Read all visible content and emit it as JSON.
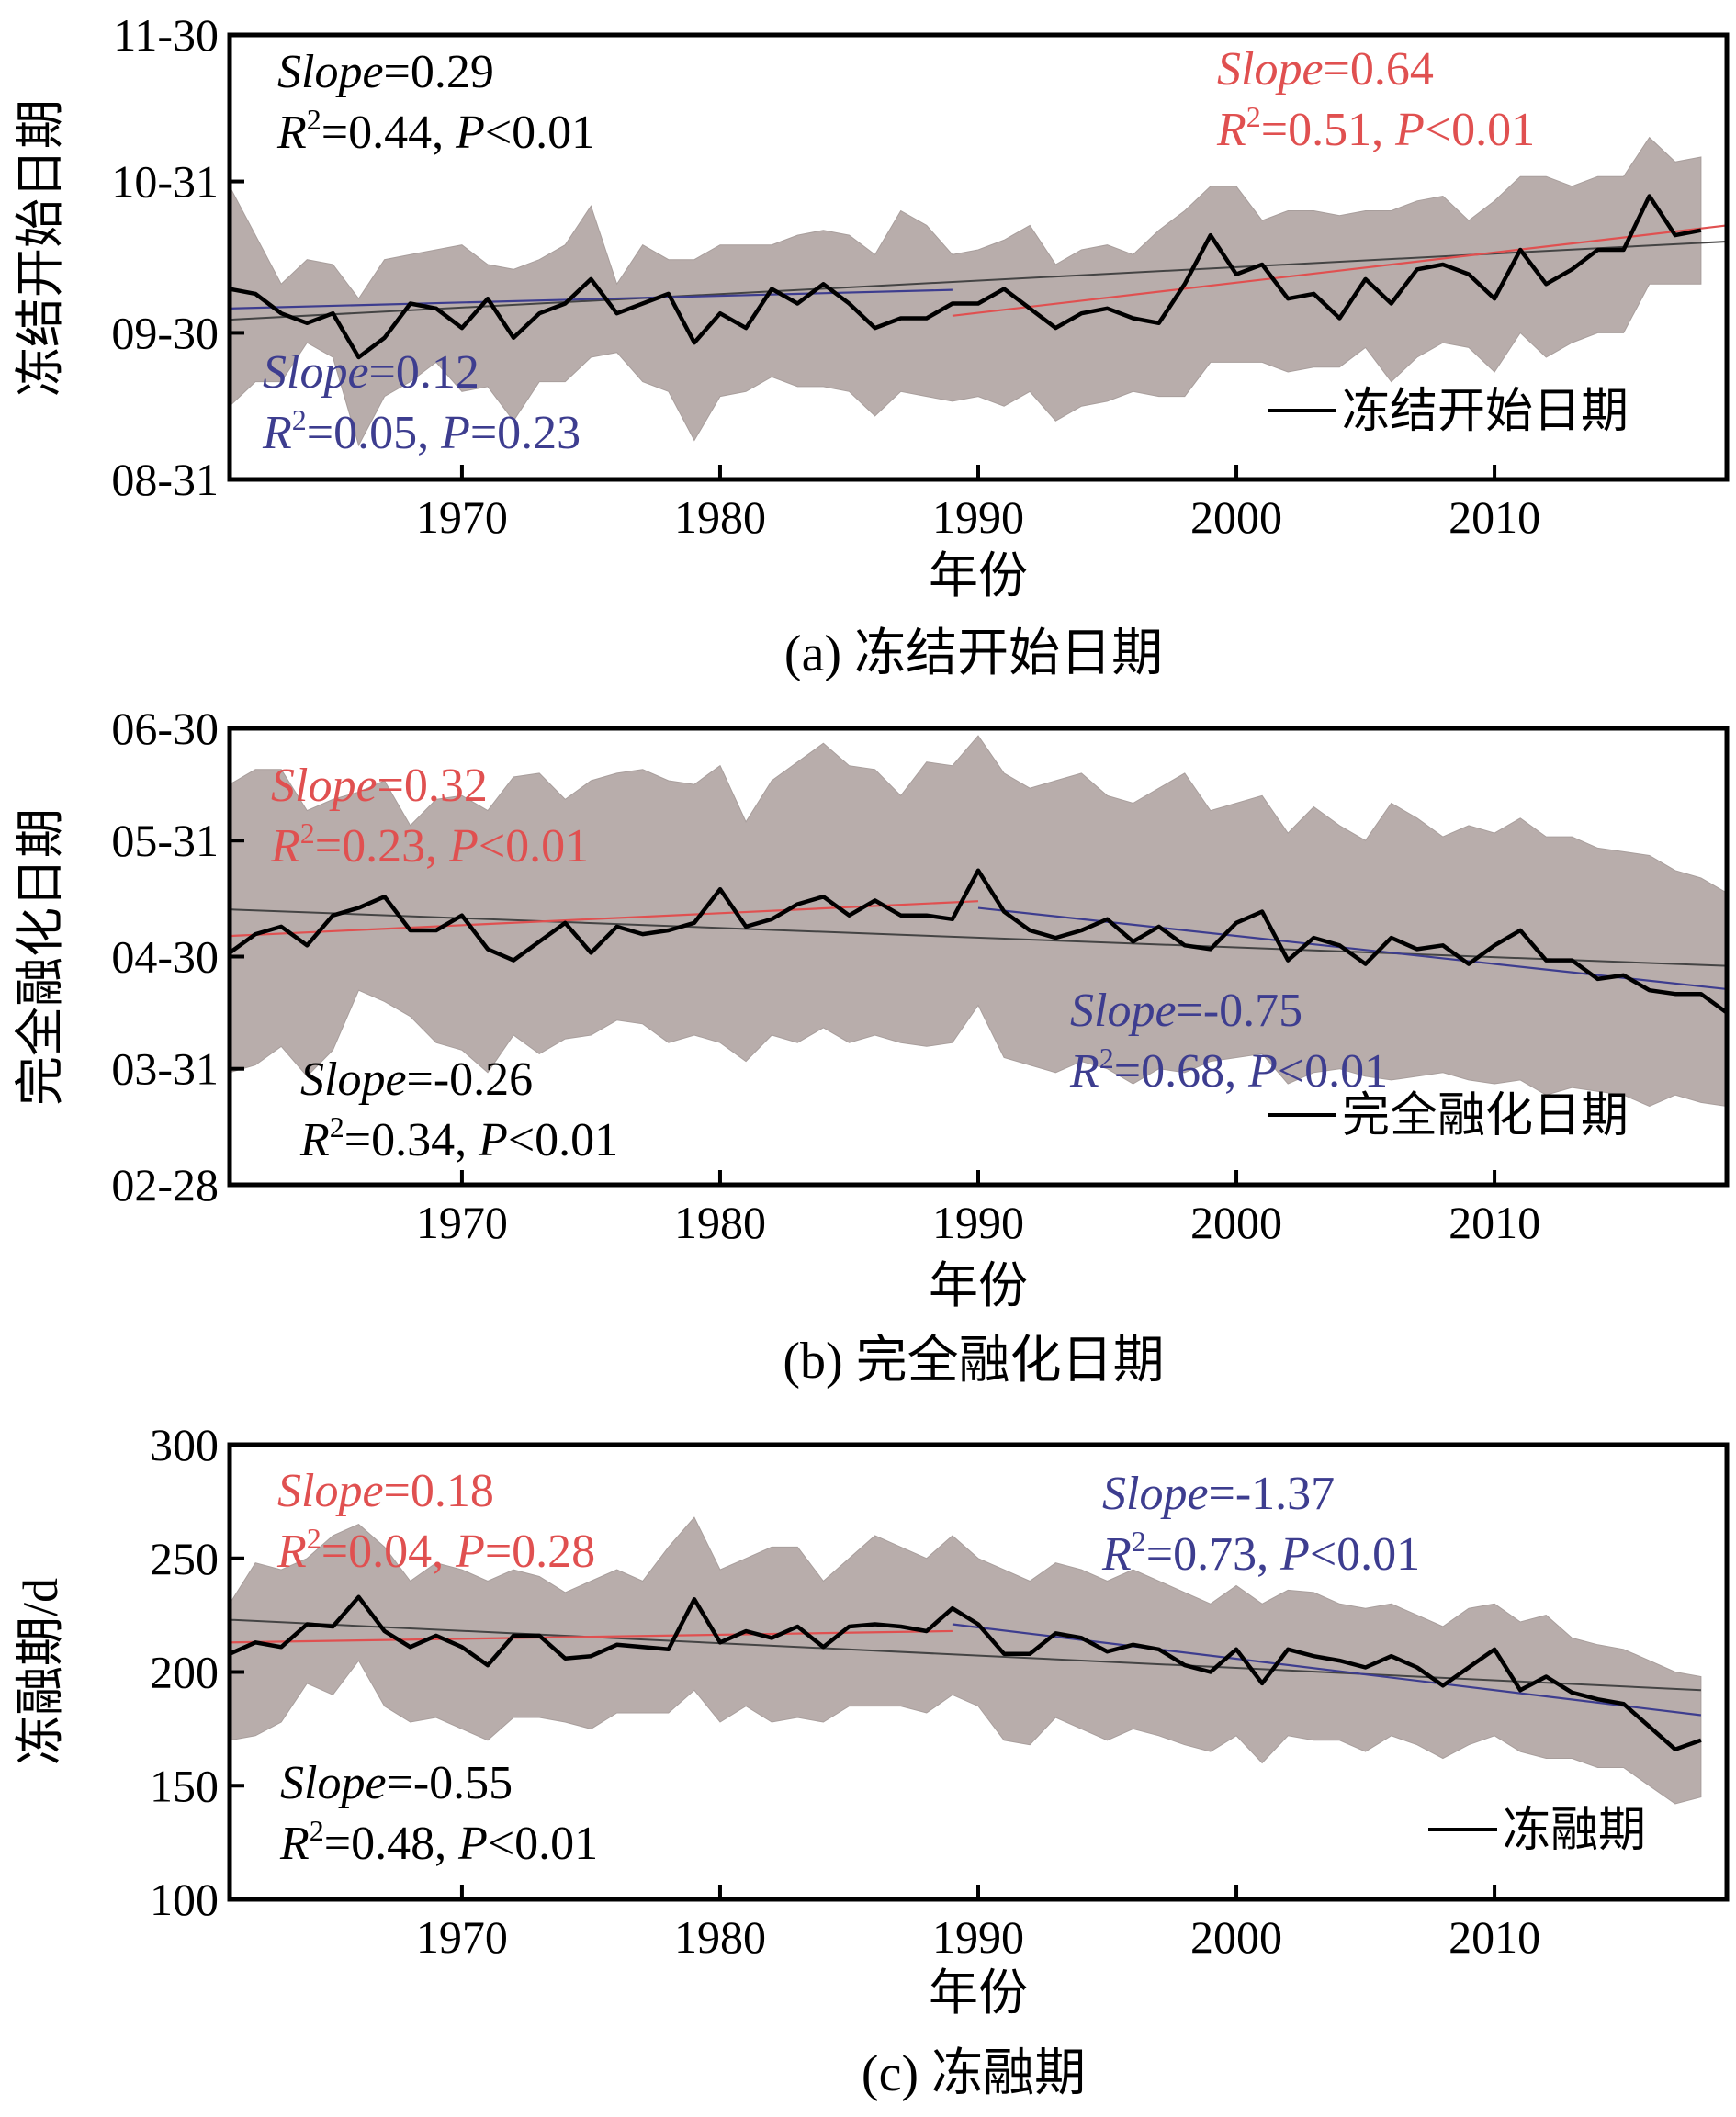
{
  "chart_data": [
    {
      "type": "line",
      "panel": "a",
      "caption": "(a) 冻结开始日期",
      "xlabel": "年份",
      "ylabel": "冻结开始日期",
      "xlim": [
        1961,
        2019
      ],
      "ylim": [
        0,
        91
      ],
      "x_ticks": [
        1970,
        1980,
        1990,
        2000,
        2010
      ],
      "x_tick_labels": [
        "1970",
        "1980",
        "1990",
        "2000",
        "2010"
      ],
      "y_ticks": [
        0,
        30,
        61,
        91
      ],
      "y_tick_labels": [
        "08-31",
        "09-30",
        "10-31",
        "11-30"
      ],
      "legend": "冻结开始日期",
      "legend_position": "bottom-right",
      "series": [
        {
          "name": "冻结开始日期",
          "color": "#000000",
          "x_start": 1961,
          "mean": [
            39,
            38,
            34,
            32,
            34,
            25,
            29,
            36,
            35,
            31,
            37,
            29,
            34,
            36,
            41,
            34,
            36,
            38,
            28,
            34,
            31,
            39,
            36,
            40,
            36,
            31,
            33,
            33,
            36,
            36,
            39,
            35,
            31,
            34,
            35,
            33,
            32,
            40,
            50,
            42,
            44,
            37,
            38,
            33,
            41,
            36,
            43,
            44,
            42,
            37,
            47,
            40,
            43,
            47,
            47,
            58,
            50,
            51
          ],
          "upper": [
            60,
            50,
            40,
            45,
            44,
            37,
            45,
            46,
            47,
            48,
            44,
            43,
            45,
            48,
            56,
            40,
            48,
            45,
            45,
            48,
            48,
            48,
            50,
            51,
            50,
            46,
            55,
            52,
            46,
            47,
            49,
            52,
            44,
            47,
            48,
            46,
            51,
            55,
            60,
            60,
            53,
            55,
            55,
            54,
            55,
            55,
            57,
            58,
            53,
            57,
            62,
            62,
            60,
            62,
            62,
            70,
            65,
            66
          ],
          "lower": [
            15,
            20,
            20,
            28,
            25,
            7,
            17,
            20,
            24,
            18,
            19,
            12,
            20,
            20,
            25,
            26,
            20,
            18,
            8,
            17,
            18,
            21,
            19,
            19,
            18,
            13,
            18,
            17,
            16,
            17,
            15,
            18,
            12,
            15,
            16,
            18,
            17,
            17,
            24,
            24,
            24,
            22,
            23,
            23,
            27,
            20,
            25,
            28,
            27,
            22,
            30,
            25,
            28,
            30,
            30,
            40,
            40,
            40
          ]
        }
      ],
      "trends": [
        {
          "name": "overall",
          "color": "#444444",
          "x0": 1961,
          "y0": 32.7,
          "x1": 2019,
          "y1": 48.7
        },
        {
          "name": "1961-1989",
          "color": "#3d3d8f",
          "x0": 1961,
          "y0": 35.0,
          "x1": 1989,
          "y1": 38.8
        },
        {
          "name": "1989-2019",
          "color": "#e05050",
          "x0": 1989,
          "y0": 33.5,
          "x1": 2019,
          "y1": 52.0
        }
      ],
      "annotations": [
        {
          "color": "#000000",
          "slope": "0.29",
          "r2": "0.44",
          "p": "P<0.01",
          "p_italic": "P",
          "p_rest": "<0.01"
        },
        {
          "color": "#e05050",
          "slope": "0.64",
          "r2": "0.51",
          "p_italic": "P",
          "p_rest": "<0.01"
        },
        {
          "color": "#3d3d8f",
          "slope": "0.12",
          "r2": "0.05",
          "p_italic": "P",
          "p_rest": "=0.23"
        }
      ]
    },
    {
      "type": "line",
      "panel": "b",
      "caption": "(b) 完全融化日期",
      "xlabel": "年份",
      "ylabel": "完全融化日期",
      "xlim": [
        1961,
        2019
      ],
      "ylim": [
        0,
        122
      ],
      "x_ticks": [
        1970,
        1980,
        1990,
        2000,
        2010
      ],
      "x_tick_labels": [
        "1970",
        "1980",
        "1990",
        "2000",
        "2010"
      ],
      "y_ticks": [
        0,
        31,
        61,
        92,
        122
      ],
      "y_tick_labels": [
        "02-28",
        "03-31",
        "04-30",
        "05-31",
        "06-30"
      ],
      "legend": "完全融化日期",
      "legend_position": "bottom-right",
      "series": [
        {
          "name": "完全融化日期",
          "color": "#000000",
          "x_start": 1961,
          "mean": [
            62,
            67,
            69,
            64,
            72,
            74,
            77,
            68,
            68,
            72,
            63,
            60,
            65,
            70,
            62,
            69,
            67,
            68,
            70,
            79,
            69,
            71,
            75,
            77,
            72,
            76,
            72,
            72,
            71,
            84,
            73,
            68,
            66,
            68,
            71,
            65,
            69,
            64,
            63,
            70,
            73,
            60,
            66,
            64,
            59,
            66,
            63,
            64,
            59,
            64,
            68,
            60,
            60,
            55,
            56,
            52,
            51,
            51,
            46
          ],
          "upper": [
            107,
            111,
            111,
            100,
            103,
            105,
            108,
            96,
            103,
            104,
            100,
            109,
            110,
            103,
            108,
            110,
            111,
            108,
            107,
            112,
            97,
            108,
            113,
            118,
            112,
            111,
            104,
            113,
            112,
            120,
            110,
            106,
            108,
            110,
            104,
            102,
            106,
            110,
            100,
            102,
            104,
            94,
            101,
            96,
            92,
            102,
            98,
            93,
            96,
            94,
            98,
            93,
            93,
            90,
            89,
            88,
            84,
            82,
            78
          ],
          "lower": [
            30,
            32,
            37,
            29,
            36,
            52,
            49,
            45,
            38,
            36,
            30,
            40,
            35,
            39,
            40,
            44,
            43,
            38,
            40,
            38,
            33,
            40,
            38,
            42,
            38,
            40,
            38,
            37,
            38,
            48,
            34,
            32,
            30,
            33,
            31,
            27,
            31,
            30,
            33,
            34,
            35,
            27,
            30,
            31,
            29,
            28,
            29,
            30,
            28,
            27,
            28,
            24,
            26,
            25,
            24,
            21,
            24,
            22,
            21
          ]
        }
      ],
      "trends": [
        {
          "name": "overall",
          "color": "#444444",
          "x0": 1961,
          "y0": 73.6,
          "x1": 2019,
          "y1": 58.5
        },
        {
          "name": "1961-1990",
          "color": "#e05050",
          "x0": 1961,
          "y0": 66.5,
          "x1": 1990,
          "y1": 75.8
        },
        {
          "name": "1990-2019",
          "color": "#3d3d8f",
          "x0": 1990,
          "y0": 74.0,
          "x1": 2019,
          "y1": 52.3
        }
      ],
      "annotations": [
        {
          "color": "#e05050",
          "slope": "0.32",
          "r2": "0.23",
          "p_italic": "P",
          "p_rest": "<0.01"
        },
        {
          "color": "#3d3d8f",
          "slope": "-0.75",
          "r2": "0.68",
          "p_italic": "P",
          "p_rest": "<0.01"
        },
        {
          "color": "#000000",
          "slope": "-0.26",
          "r2": "0.34",
          "p_italic": "P",
          "p_rest": "<0.01"
        }
      ]
    },
    {
      "type": "line",
      "panel": "c",
      "caption": "(c) 冻融期",
      "xlabel": "年份",
      "ylabel": "冻融期/d",
      "xlim": [
        1961,
        2019
      ],
      "ylim": [
        100,
        300
      ],
      "x_ticks": [
        1970,
        1980,
        1990,
        2000,
        2010
      ],
      "x_tick_labels": [
        "1970",
        "1980",
        "1990",
        "2000",
        "2010"
      ],
      "y_ticks": [
        100,
        150,
        200,
        250,
        300
      ],
      "y_tick_labels": [
        "100",
        "150",
        "200",
        "250",
        "300"
      ],
      "legend": "冻融期",
      "legend_position": "bottom-right",
      "series": [
        {
          "name": "冻融期",
          "color": "#000000",
          "x_start": 1961,
          "x_end": 2018,
          "mean": [
            208,
            213,
            211,
            221,
            220,
            233,
            218,
            211,
            216,
            211,
            203,
            216,
            216,
            206,
            207,
            212,
            211,
            210,
            232,
            213,
            218,
            215,
            220,
            211,
            220,
            221,
            220,
            218,
            228,
            221,
            208,
            208,
            217,
            215,
            209,
            212,
            210,
            203,
            200,
            210,
            195,
            210,
            207,
            205,
            202,
            207,
            202,
            194,
            202,
            210,
            192,
            198,
            191,
            188,
            186,
            176,
            166,
            170
          ],
          "upper": [
            230,
            248,
            245,
            250,
            260,
            265,
            255,
            240,
            248,
            245,
            240,
            245,
            242,
            235,
            240,
            245,
            240,
            255,
            268,
            245,
            250,
            255,
            255,
            240,
            250,
            260,
            255,
            250,
            260,
            250,
            245,
            240,
            248,
            245,
            240,
            245,
            240,
            235,
            230,
            238,
            230,
            236,
            235,
            230,
            228,
            230,
            225,
            220,
            228,
            230,
            222,
            225,
            215,
            212,
            210,
            205,
            200,
            198
          ],
          "lower": [
            170,
            172,
            178,
            195,
            190,
            205,
            185,
            178,
            180,
            175,
            170,
            180,
            180,
            178,
            175,
            182,
            182,
            182,
            192,
            178,
            185,
            178,
            180,
            178,
            185,
            185,
            185,
            182,
            190,
            185,
            170,
            168,
            180,
            175,
            170,
            175,
            172,
            168,
            165,
            172,
            160,
            172,
            170,
            170,
            165,
            172,
            168,
            162,
            168,
            172,
            165,
            162,
            162,
            158,
            158,
            150,
            142,
            145
          ]
        }
      ],
      "trends": [
        {
          "name": "overall",
          "color": "#444444",
          "x0": 1961,
          "y0": 223,
          "x1": 2018,
          "y1": 192
        },
        {
          "name": "1961-1989",
          "color": "#e05050",
          "x0": 1961,
          "y0": 213,
          "x1": 1989,
          "y1": 218
        },
        {
          "name": "1989-2018",
          "color": "#3d3d8f",
          "x0": 1989,
          "y0": 221,
          "x1": 2018,
          "y1": 181
        }
      ],
      "annotations": [
        {
          "color": "#e05050",
          "slope": "0.18",
          "r2": "0.04",
          "p_italic": "P",
          "p_rest": "=0.28"
        },
        {
          "color": "#3d3d8f",
          "slope": "-1.37",
          "r2": "0.73",
          "p_italic": "P",
          "p_rest": "<0.01"
        },
        {
          "color": "#000000",
          "slope": "-0.55",
          "r2": "0.48",
          "p_italic": "P",
          "p_rest": "<0.01"
        }
      ]
    }
  ],
  "labels": {
    "slope_word": "Slope",
    "r_letter": "R",
    "r_sup": "2",
    "eq": "=",
    "sep": ", "
  },
  "colors": {
    "band": "#b8adab",
    "band_edge": "#a89e9c",
    "mean_line": "#000000",
    "overall": "#444444",
    "red": "#e05050",
    "blue": "#3d3d8f"
  }
}
